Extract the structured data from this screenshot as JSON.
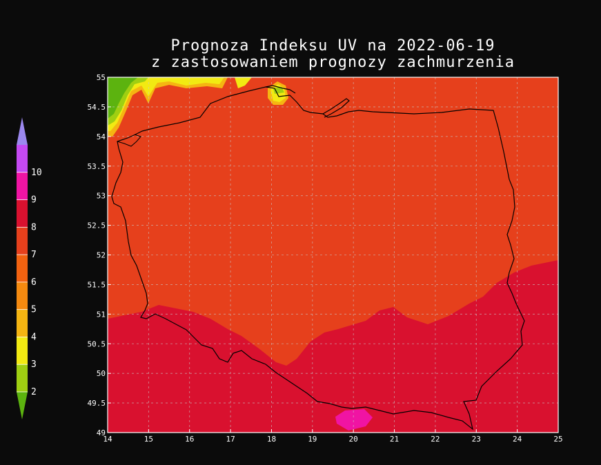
{
  "title_line1": "Prognoza Indeksu UV na 2022-06-19",
  "title_line2": "z zastosowaniem prognozy zachmurzenia",
  "x_ticks": [
    "14",
    "15",
    "16",
    "17",
    "18",
    "19",
    "20",
    "21",
    "22",
    "23",
    "24",
    "25"
  ],
  "y_ticks": [
    "49",
    "49.5",
    "50",
    "50.5",
    "51",
    "51.5",
    "52",
    "52.5",
    "53",
    "53.5",
    "54",
    "54.5",
    "55"
  ],
  "colorbar": {
    "labels": [
      "2",
      "3",
      "4",
      "5",
      "6",
      "7",
      "8",
      "9",
      "10"
    ],
    "colors": [
      "#5cb30f",
      "#9fcf12",
      "#f2ea12",
      "#f5b512",
      "#f58a10",
      "#f26210",
      "#e6401c",
      "#d9112f",
      "#f014a3",
      "#c449f2",
      "#9b88ee"
    ]
  },
  "colors": {
    "uv7": "#e6401c",
    "uv8": "#d9112f",
    "uv9": "#f014a3",
    "uv3": "#9fcf12",
    "uv4": "#f2ea12",
    "uv2": "#5cb30f",
    "uv5": "#f5b512",
    "border": "#000000",
    "grid": "#c8c8c8"
  }
}
